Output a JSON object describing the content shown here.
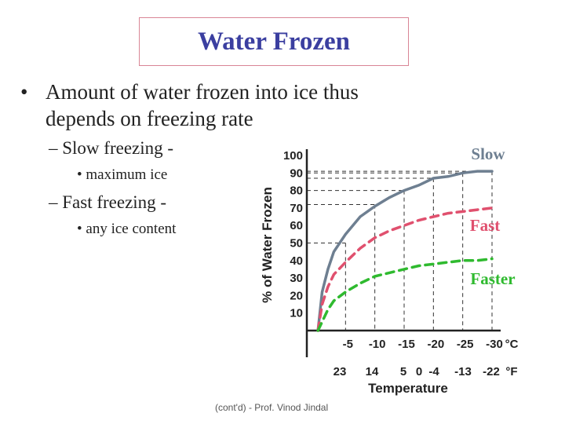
{
  "slide": {
    "title": "Water Frozen",
    "bullet": "Amount of water frozen into ice thus depends on freezing rate",
    "sub1": "Slow freezing -",
    "sub1_detail": "maximum ice",
    "sub2": "Fast freezing -",
    "sub2_detail": "any ice content",
    "footer": "(cont'd) - Prof. Vinod Jindal"
  },
  "chart_data": {
    "type": "line",
    "ylabel": "% of Water Frozen",
    "xlabel": "Temperature",
    "x_unit_c": "°C",
    "x_unit_f": "°F",
    "ylim": [
      0,
      100
    ],
    "yticks": [
      10,
      20,
      30,
      40,
      50,
      60,
      70,
      80,
      90,
      100
    ],
    "x_ticks_c": [
      "-5",
      "-10",
      "-15",
      "-20",
      "-25",
      "-30"
    ],
    "x_ticks_f": [
      "23",
      "14",
      "5",
      "0",
      "-4",
      "-13",
      "-22"
    ],
    "series": [
      {
        "name": "Slow",
        "color": "#6e7f91",
        "style": "solid",
        "points": [
          [
            0.3,
            0
          ],
          [
            1,
            22
          ],
          [
            2,
            35
          ],
          [
            3,
            45
          ],
          [
            5,
            55
          ],
          [
            7.5,
            65
          ],
          [
            10,
            71
          ],
          [
            12.5,
            76
          ],
          [
            15,
            80
          ],
          [
            17.5,
            83
          ],
          [
            20,
            87
          ],
          [
            22.5,
            88
          ],
          [
            25,
            90
          ],
          [
            27.5,
            91
          ],
          [
            30,
            91
          ]
        ]
      },
      {
        "name": "Fast",
        "color": "#e0506e",
        "style": "dashed",
        "points": [
          [
            0.3,
            0
          ],
          [
            1,
            15
          ],
          [
            2,
            25
          ],
          [
            3,
            32
          ],
          [
            5,
            39
          ],
          [
            7.5,
            47
          ],
          [
            10,
            53
          ],
          [
            12.5,
            57
          ],
          [
            15,
            60
          ],
          [
            17.5,
            63
          ],
          [
            20,
            65
          ],
          [
            22.5,
            67
          ],
          [
            25,
            68
          ],
          [
            27.5,
            69
          ],
          [
            30,
            70
          ]
        ]
      },
      {
        "name": "Faster",
        "color": "#2fba2f",
        "style": "dashed",
        "points": [
          [
            0.3,
            0
          ],
          [
            1,
            5
          ],
          [
            2,
            12
          ],
          [
            3,
            17
          ],
          [
            5,
            22
          ],
          [
            7.5,
            27
          ],
          [
            10,
            31
          ],
          [
            12.5,
            33
          ],
          [
            15,
            35
          ],
          [
            17.5,
            37
          ],
          [
            20,
            38
          ],
          [
            22.5,
            39
          ],
          [
            25,
            40
          ],
          [
            27.5,
            40
          ],
          [
            30,
            41
          ]
        ]
      }
    ],
    "reference_lines": [
      {
        "temp_c": 5,
        "y": 50
      },
      {
        "temp_c": 10,
        "y": 72
      },
      {
        "temp_c": 15,
        "y": 80
      },
      {
        "temp_c": 20,
        "y": 87
      },
      {
        "temp_c": 25,
        "y": 90
      },
      {
        "temp_c": 30,
        "y": 91
      }
    ]
  }
}
